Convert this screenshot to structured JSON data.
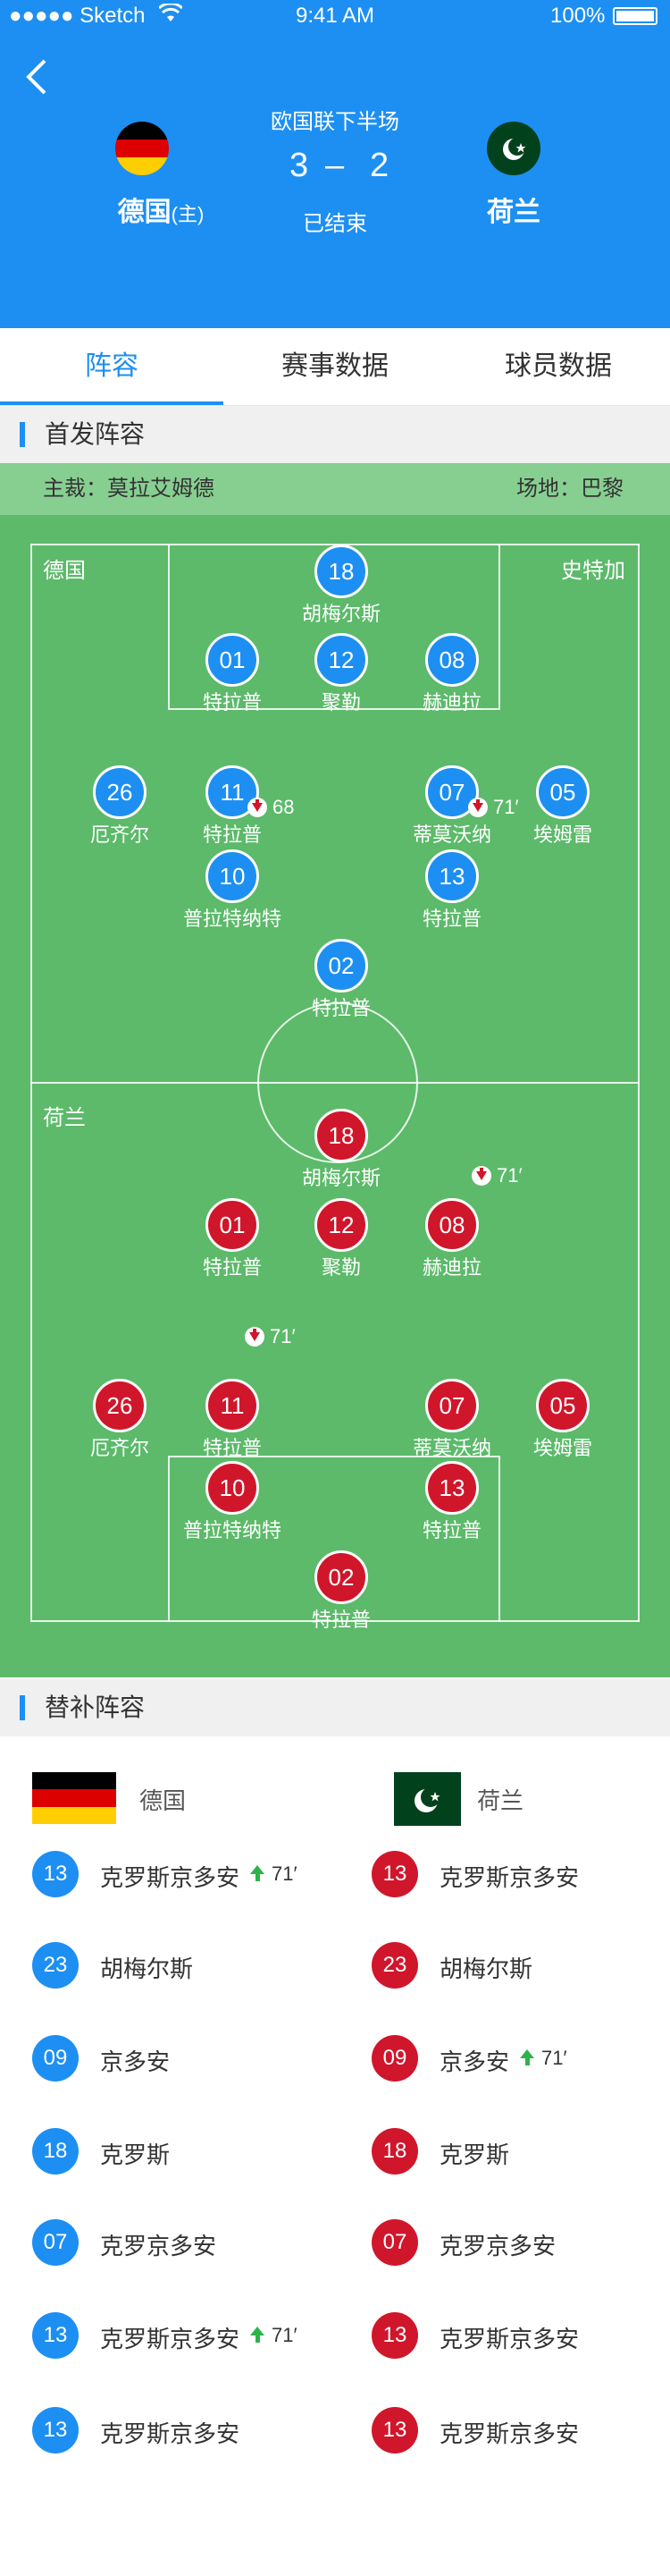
{
  "status_bar": {
    "carrier": "●●●●● Sketch",
    "time": "9:41 AM",
    "battery": "100%"
  },
  "match": {
    "stage": "欧国联下半场",
    "score_home": "3",
    "score_sep": "–",
    "score_away": "2",
    "status": "已结束",
    "home_team": "德国",
    "home_tag": "(主)",
    "away_team": "荷兰"
  },
  "tabs": [
    {
      "label": "阵容",
      "active": true
    },
    {
      "label": "赛事数据",
      "active": false
    },
    {
      "label": "球员数据",
      "active": false
    }
  ],
  "lineup_section": {
    "title": "首发阵容"
  },
  "info": {
    "referee": "主裁：莫拉艾姆德",
    "venue": "场地：巴黎"
  },
  "pitch": {
    "home_label": "德国",
    "away_label": "荷兰",
    "right_label": "史特加",
    "home_players": [
      {
        "num": "18",
        "name": "胡梅尔斯"
      },
      {
        "num": "01",
        "name": "特拉普"
      },
      {
        "num": "12",
        "name": "聚勒"
      },
      {
        "num": "08",
        "name": "赫迪拉"
      },
      {
        "num": "26",
        "name": "厄齐尔"
      },
      {
        "num": "11",
        "name": "特拉普",
        "sub": "68"
      },
      {
        "num": "07",
        "name": "蒂莫沃纳",
        "sub": "71′"
      },
      {
        "num": "05",
        "name": "埃姆雷"
      },
      {
        "num": "10",
        "name": "普拉特纳特"
      },
      {
        "num": "13",
        "name": "特拉普"
      },
      {
        "num": "02",
        "name": "特拉普"
      }
    ],
    "away_players": [
      {
        "num": "18",
        "name": "胡梅尔斯"
      },
      {
        "num": "01",
        "name": "特拉普"
      },
      {
        "num": "12",
        "name": "聚勒"
      },
      {
        "num": "08",
        "name": "赫迪拉"
      },
      {
        "num": "26",
        "name": "厄齐尔"
      },
      {
        "num": "11",
        "name": "特拉普"
      },
      {
        "num": "07",
        "name": "蒂莫沃纳"
      },
      {
        "num": "05",
        "name": "埃姆雷"
      },
      {
        "num": "10",
        "name": "普拉特纳特"
      },
      {
        "num": "13",
        "name": "特拉普"
      },
      {
        "num": "02",
        "name": "特拉普"
      }
    ],
    "away_sub_times": [
      "71′",
      "71′"
    ]
  },
  "subs_section": {
    "title": "替补阵容",
    "home_team": "德国",
    "away_team": "荷兰",
    "rows": [
      {
        "home_num": "13",
        "home_name": "克罗斯京多安",
        "home_time": "71′",
        "away_num": "13",
        "away_name": "克罗斯京多安",
        "away_time": ""
      },
      {
        "home_num": "23",
        "home_name": "胡梅尔斯",
        "home_time": "",
        "away_num": "23",
        "away_name": "胡梅尔斯",
        "away_time": ""
      },
      {
        "home_num": "09",
        "home_name": "京多安",
        "home_time": "",
        "away_num": "09",
        "away_name": "京多安",
        "away_time": "71′"
      },
      {
        "home_num": "18",
        "home_name": "克罗斯",
        "home_time": "",
        "away_num": "18",
        "away_name": "克罗斯",
        "away_time": ""
      },
      {
        "home_num": "07",
        "home_name": "克罗京多安",
        "home_time": "",
        "away_num": "07",
        "away_name": "克罗京多安",
        "away_time": ""
      },
      {
        "home_num": "13",
        "home_name": "克罗斯京多安",
        "home_time": "71′",
        "away_num": "13",
        "away_name": "克罗斯京多安",
        "away_time": ""
      },
      {
        "home_num": "13",
        "home_name": "克罗斯京多安",
        "home_time": "",
        "away_num": "13",
        "away_name": "克罗斯京多安",
        "away_time": ""
      }
    ]
  },
  "colors": {
    "primary": "#1d8ff2",
    "home": "#1d8ff2",
    "away": "#d0162b",
    "pitch": "#5cba6a",
    "sub_in": "#2db34a"
  }
}
